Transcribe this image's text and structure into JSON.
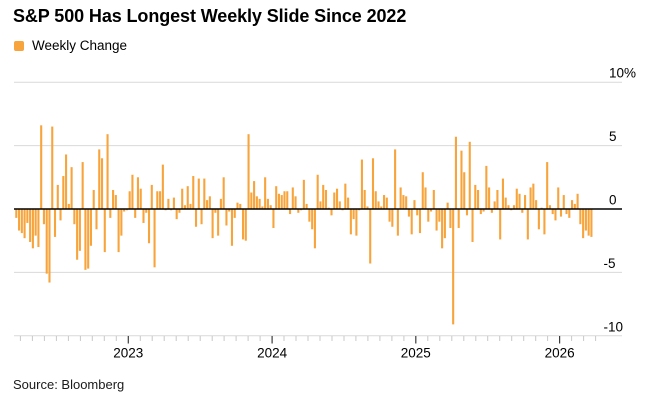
{
  "title": "S&P 500 Has Longest Weekly Slide Since 2022",
  "legend": {
    "label": "Weekly Change"
  },
  "source": "Source: Bloomberg",
  "colors": {
    "bar": "#f8a43c",
    "zero_line": "#000000",
    "gridline": "#d9d9d9",
    "minor_tick": "#c8c8c8",
    "major_tick": "#3c3c3c",
    "text": "#000000"
  },
  "chart_data": {
    "type": "bar",
    "title": "S&P 500 Has Longest Weekly Slide Since 2022",
    "xlabel": "",
    "ylabel": "Weekly Change (%)",
    "frequency": "weekly",
    "start_week_ending": "2022-03-25",
    "grid": "horizontal",
    "legend_position": "top-left",
    "ylim": [
      -10.5,
      10
    ],
    "yticks": [
      10,
      5,
      0,
      -5,
      -10
    ],
    "ytick_labels": [
      "10%",
      "5",
      "0",
      "-5",
      "-10"
    ],
    "xtick_labels": [
      "2023",
      "2024",
      "2025",
      "2026"
    ],
    "year_start_indices": [
      41,
      93,
      145,
      197
    ],
    "series": [
      {
        "name": "Weekly Change",
        "unit": "%",
        "values": [
          -0.7,
          -1.7,
          -1.9,
          -2.3,
          -1.1,
          -2.6,
          -3.1,
          -2.1,
          -3.0,
          6.6,
          -1.2,
          -5.1,
          -5.8,
          6.5,
          -2.2,
          1.9,
          -0.9,
          2.6,
          4.3,
          0.4,
          3.3,
          -1.2,
          -4.0,
          -3.3,
          3.7,
          -4.8,
          -4.7,
          -2.9,
          1.5,
          -1.6,
          4.7,
          4.0,
          -3.4,
          5.9,
          -0.7,
          1.5,
          1.1,
          -3.4,
          -2.1,
          -0.2,
          -0.1,
          1.4,
          2.7,
          -0.7,
          2.5,
          1.6,
          -1.1,
          -0.3,
          -2.7,
          1.9,
          -4.6,
          1.4,
          1.4,
          3.5,
          -0.1,
          0.8,
          -0.1,
          0.9,
          -0.8,
          -0.3,
          1.6,
          0.3,
          1.8,
          0.4,
          2.6,
          -1.4,
          2.4,
          -1.2,
          2.4,
          0.7,
          1.0,
          -2.3,
          -0.3,
          -2.1,
          0.8,
          2.5,
          -1.3,
          -0.2,
          -2.9,
          -0.7,
          0.5,
          0.4,
          -2.4,
          -2.5,
          5.9,
          1.3,
          2.2,
          1.0,
          0.8,
          0.2,
          2.5,
          0.8,
          0.3,
          -1.5,
          1.8,
          1.2,
          1.1,
          1.4,
          1.4,
          -0.4,
          1.7,
          1.0,
          -0.3,
          -0.1,
          2.3,
          0.4,
          -1.0,
          -1.6,
          -3.1,
          2.7,
          0.6,
          1.9,
          1.5,
          0.1,
          -0.5,
          1.3,
          1.6,
          0.6,
          -0.1,
          2.0,
          0.9,
          -2.0,
          -0.8,
          -2.1,
          -0.1,
          3.9,
          1.5,
          0.2,
          -4.3,
          4.0,
          1.4,
          0.6,
          0.2,
          1.1,
          0.9,
          -1.0,
          -1.4,
          4.7,
          -2.1,
          1.7,
          1.1,
          1.0,
          -0.6,
          -2.0,
          0.7,
          -0.5,
          -1.9,
          2.9,
          1.7,
          -1.0,
          -0.2,
          1.5,
          -1.7,
          -1.0,
          -3.1,
          -2.3,
          0.5,
          -1.5,
          -9.1,
          5.7,
          -1.5,
          4.6,
          2.9,
          -0.5,
          5.3,
          -2.6,
          1.9,
          1.5,
          -0.4,
          -0.2,
          3.4,
          1.7,
          -0.3,
          0.6,
          1.5,
          -2.4,
          2.4,
          0.9,
          0.3,
          -0.1,
          0.3,
          1.6,
          1.2,
          -0.3,
          1.1,
          -2.4,
          1.7,
          2.0,
          0.7,
          -1.6,
          0.1,
          -2.0,
          3.7,
          0.3,
          -0.4,
          -0.9,
          1.7,
          -0.6,
          1.1,
          -0.4,
          -0.7,
          0.7,
          0.4,
          1.2,
          -1.2,
          -2.3,
          -1.7,
          -2.1,
          -2.2
        ]
      }
    ]
  }
}
